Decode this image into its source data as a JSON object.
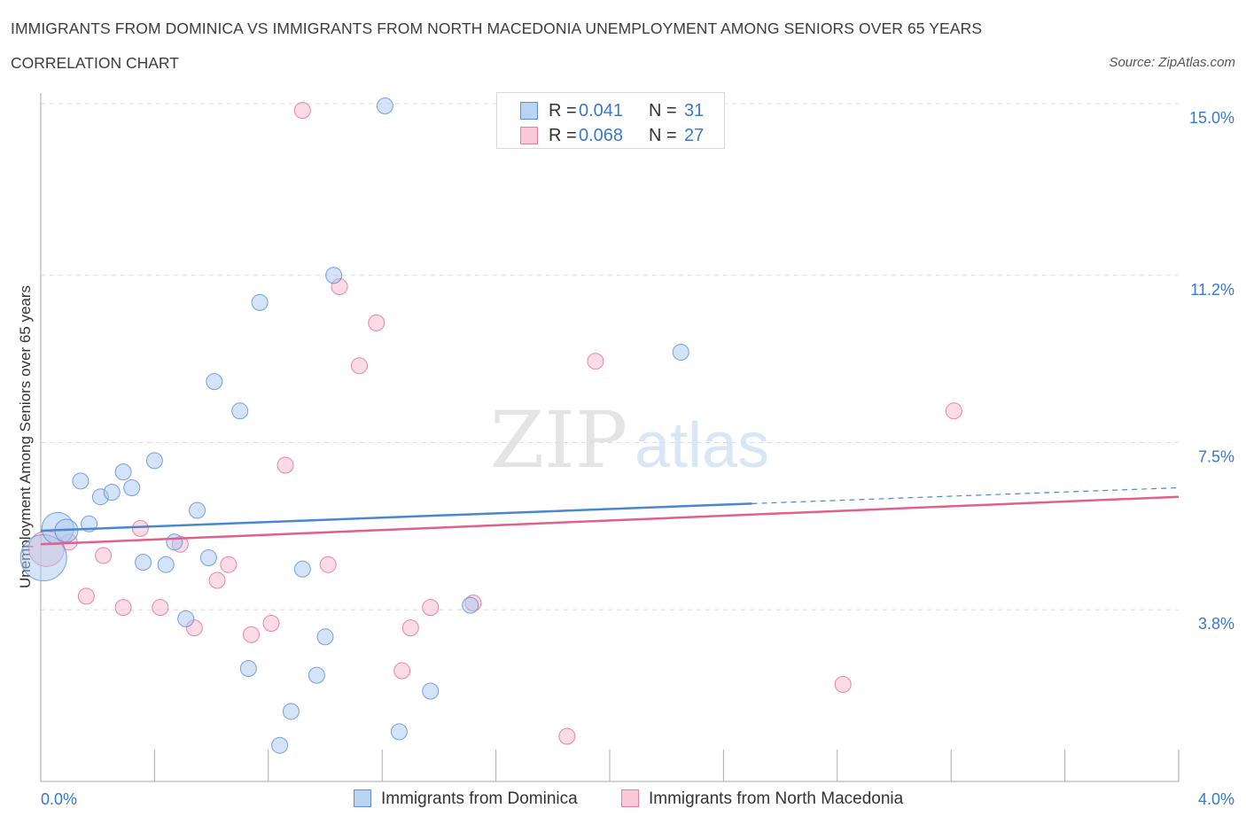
{
  "chart_data": {
    "type": "scatter",
    "title": "IMMIGRANTS FROM DOMINICA VS IMMIGRANTS FROM NORTH MACEDONIA UNEMPLOYMENT AMONG SENIORS OVER 65 YEARS",
    "subtitle": "CORRELATION CHART",
    "source": "Source: ZipAtlas.com",
    "ylabel": "Unemployment Among Seniors over 65 years",
    "xlabel": "",
    "xlim": [
      0,
      4
    ],
    "ylim": [
      0,
      15
    ],
    "x_tick_labels": {
      "left": "0.0%",
      "right": "4.0%"
    },
    "y_ticks": [
      {
        "value": 3.8,
        "label": "3.8%"
      },
      {
        "value": 7.5,
        "label": "7.5%"
      },
      {
        "value": 11.2,
        "label": "11.2%"
      },
      {
        "value": 15.0,
        "label": "15.0%"
      }
    ],
    "watermark": {
      "zip": "ZIP",
      "atlas": "atlas"
    },
    "series": [
      {
        "name": "Immigrants from Dominica",
        "color": "#4a86d4",
        "fill": "#a9c8ef",
        "R_label": "R =",
        "R": "0.041",
        "N_label": "N =",
        "N": "31",
        "trend": {
          "x_start": 0.0,
          "y_start": 5.55,
          "x_end": 2.5,
          "y_end": 6.15,
          "dash_to_x": 4.0,
          "dash_to_y": 6.5
        },
        "points": [
          {
            "x": 0.01,
            "y": 4.95,
            "size": 26
          },
          {
            "x": 0.06,
            "y": 5.6,
            "size": 18
          },
          {
            "x": 0.09,
            "y": 5.55,
            "size": 13
          },
          {
            "x": 0.14,
            "y": 6.65,
            "size": 9
          },
          {
            "x": 0.17,
            "y": 5.7,
            "size": 9
          },
          {
            "x": 0.21,
            "y": 6.3,
            "size": 9
          },
          {
            "x": 0.25,
            "y": 6.4,
            "size": 9
          },
          {
            "x": 0.29,
            "y": 6.85,
            "size": 9
          },
          {
            "x": 0.32,
            "y": 6.5,
            "size": 9
          },
          {
            "x": 0.36,
            "y": 4.85,
            "size": 9
          },
          {
            "x": 0.4,
            "y": 7.1,
            "size": 9
          },
          {
            "x": 0.44,
            "y": 4.8,
            "size": 9
          },
          {
            "x": 0.47,
            "y": 5.3,
            "size": 9
          },
          {
            "x": 0.51,
            "y": 3.6,
            "size": 9
          },
          {
            "x": 0.55,
            "y": 6.0,
            "size": 9
          },
          {
            "x": 0.59,
            "y": 4.95,
            "size": 9
          },
          {
            "x": 0.61,
            "y": 8.85,
            "size": 9
          },
          {
            "x": 0.7,
            "y": 8.2,
            "size": 9
          },
          {
            "x": 0.73,
            "y": 2.5,
            "size": 9
          },
          {
            "x": 0.77,
            "y": 10.6,
            "size": 9
          },
          {
            "x": 0.84,
            "y": 0.8,
            "size": 9
          },
          {
            "x": 0.88,
            "y": 1.55,
            "size": 9
          },
          {
            "x": 0.92,
            "y": 4.7,
            "size": 9
          },
          {
            "x": 0.97,
            "y": 2.35,
            "size": 9
          },
          {
            "x": 1.0,
            "y": 3.2,
            "size": 9
          },
          {
            "x": 1.03,
            "y": 11.2,
            "size": 9
          },
          {
            "x": 1.21,
            "y": 14.95,
            "size": 9
          },
          {
            "x": 1.26,
            "y": 1.1,
            "size": 9
          },
          {
            "x": 1.37,
            "y": 2.0,
            "size": 9
          },
          {
            "x": 1.51,
            "y": 3.9,
            "size": 9
          },
          {
            "x": 2.25,
            "y": 9.5,
            "size": 9
          }
        ]
      },
      {
        "name": "Immigrants from North Macedonia",
        "color": "#e0608d",
        "fill": "#f7b8cc",
        "R_label": "R =",
        "R": "0.068",
        "N_label": "N =",
        "N": "27",
        "trend": {
          "x_start": 0.0,
          "y_start": 5.25,
          "x_end": 4.0,
          "y_end": 6.3
        },
        "points": [
          {
            "x": 0.02,
            "y": 5.15,
            "size": 20
          },
          {
            "x": 0.1,
            "y": 5.3,
            "size": 9
          },
          {
            "x": 0.16,
            "y": 4.1,
            "size": 9
          },
          {
            "x": 0.22,
            "y": 5.0,
            "size": 9
          },
          {
            "x": 0.29,
            "y": 3.85,
            "size": 9
          },
          {
            "x": 0.35,
            "y": 5.6,
            "size": 9
          },
          {
            "x": 0.42,
            "y": 3.85,
            "size": 9
          },
          {
            "x": 0.49,
            "y": 5.25,
            "size": 9
          },
          {
            "x": 0.54,
            "y": 3.4,
            "size": 9
          },
          {
            "x": 0.62,
            "y": 4.45,
            "size": 9
          },
          {
            "x": 0.66,
            "y": 4.8,
            "size": 9
          },
          {
            "x": 0.74,
            "y": 3.25,
            "size": 9
          },
          {
            "x": 0.81,
            "y": 3.5,
            "size": 9
          },
          {
            "x": 0.86,
            "y": 7.0,
            "size": 9
          },
          {
            "x": 0.92,
            "y": 14.85,
            "size": 9
          },
          {
            "x": 1.01,
            "y": 4.8,
            "size": 9
          },
          {
            "x": 1.05,
            "y": 10.95,
            "size": 9
          },
          {
            "x": 1.12,
            "y": 9.2,
            "size": 9
          },
          {
            "x": 1.18,
            "y": 10.15,
            "size": 9
          },
          {
            "x": 1.27,
            "y": 2.45,
            "size": 9
          },
          {
            "x": 1.3,
            "y": 3.4,
            "size": 9
          },
          {
            "x": 1.37,
            "y": 3.85,
            "size": 9
          },
          {
            "x": 1.52,
            "y": 3.95,
            "size": 9
          },
          {
            "x": 1.85,
            "y": 1.0,
            "size": 9
          },
          {
            "x": 1.95,
            "y": 9.3,
            "size": 9
          },
          {
            "x": 2.82,
            "y": 2.15,
            "size": 9
          },
          {
            "x": 3.21,
            "y": 8.2,
            "size": 9
          }
        ]
      }
    ]
  }
}
